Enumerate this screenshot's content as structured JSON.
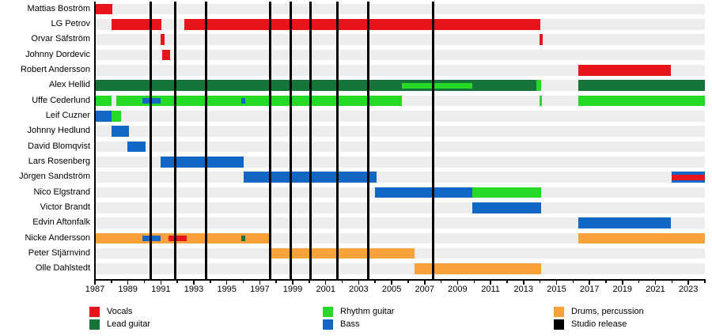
{
  "chart_data": {
    "type": "gantt",
    "x_axis": {
      "min_year": 1987,
      "max_year": 2024,
      "minor_tick_step": 1,
      "label_year_start": 1987,
      "label_year_step": 2,
      "tick_labels": [
        "1987",
        "1989",
        "1991",
        "1993",
        "1995",
        "1997",
        "1999",
        "2001",
        "2003",
        "2005",
        "2007",
        "2009",
        "2011",
        "2013",
        "2015",
        "2017",
        "2019",
        "2021",
        "2023"
      ]
    },
    "roles": {
      "vocals": {
        "label": "Vocals",
        "color": "#e8141c"
      },
      "lead_guitar": {
        "label": "Lead guitar",
        "color": "#157539"
      },
      "rhythm_guitar": {
        "label": "Rhythm guitar",
        "color": "#26d926"
      },
      "bass": {
        "label": "Bass",
        "color": "#1266c4"
      },
      "drums": {
        "label": "Drums, percussion",
        "color": "#f9a13b"
      },
      "studio_release": {
        "label": "Studio release",
        "color": "#000000"
      }
    },
    "legend_columns": [
      [
        "vocals",
        "lead_guitar"
      ],
      [
        "rhythm_guitar",
        "bass"
      ],
      [
        "drums",
        "studio_release"
      ]
    ],
    "studio_releases_years": [
      1990.4,
      1991.85,
      1993.75,
      1997.65,
      1998.9,
      2000.1,
      2001.7,
      2003.6,
      2007.5
    ],
    "members": [
      {
        "name": "Mattias Boström",
        "bars": [
          {
            "role": "vocals",
            "start": 1987.0,
            "end": 1988.05
          }
        ],
        "overlays": []
      },
      {
        "name": "LG Petrov",
        "bars": [
          {
            "role": "vocals",
            "start": 1988.0,
            "end": 1991.05
          },
          {
            "role": "vocals",
            "start": 1992.4,
            "end": 2014.0
          }
        ],
        "overlays": []
      },
      {
        "name": "Orvar Säfström",
        "bars": [
          {
            "role": "vocals",
            "start": 1991.0,
            "end": 1991.2
          },
          {
            "role": "vocals",
            "start": 2013.95,
            "end": 2014.15
          }
        ],
        "overlays": []
      },
      {
        "name": "Johnny Dordevic",
        "bars": [
          {
            "role": "vocals",
            "start": 1991.1,
            "end": 1991.55
          }
        ],
        "overlays": []
      },
      {
        "name": "Robert Andersson",
        "bars": [
          {
            "role": "vocals",
            "start": 2016.3,
            "end": 2021.95
          }
        ],
        "overlays": []
      },
      {
        "name": "Alex Hellid",
        "bars": [
          {
            "role": "lead_guitar",
            "start": 1987.0,
            "end": 2014.05
          },
          {
            "role": "rhythm_guitar",
            "start": 2013.8,
            "end": 2014.05
          },
          {
            "role": "lead_guitar",
            "start": 2016.3,
            "end": 2024.0
          }
        ],
        "overlays": [
          {
            "role": "rhythm_guitar",
            "start": 2005.6,
            "end": 2009.9
          }
        ]
      },
      {
        "name": "Uffe Cederlund",
        "bars": [
          {
            "role": "rhythm_guitar",
            "start": 1987.0,
            "end": 1988.0
          },
          {
            "role": "rhythm_guitar",
            "start": 1988.3,
            "end": 2005.6
          },
          {
            "role": "rhythm_guitar",
            "start": 2013.95,
            "end": 2014.1
          },
          {
            "role": "rhythm_guitar",
            "start": 2016.3,
            "end": 2024.0
          }
        ],
        "overlays": [
          {
            "role": "bass",
            "start": 1989.9,
            "end": 1991.0
          },
          {
            "role": "bass",
            "start": 1995.9,
            "end": 1996.1
          }
        ]
      },
      {
        "name": "Leif Cuzner",
        "bars": [
          {
            "role": "bass",
            "start": 1987.0,
            "end": 1988.0
          },
          {
            "role": "rhythm_guitar",
            "start": 1988.0,
            "end": 1988.6
          }
        ],
        "overlays": []
      },
      {
        "name": "Johnny Hedlund",
        "bars": [
          {
            "role": "bass",
            "start": 1988.0,
            "end": 1989.05
          }
        ],
        "overlays": []
      },
      {
        "name": "David Blomqvist",
        "bars": [
          {
            "role": "bass",
            "start": 1988.95,
            "end": 1990.05
          }
        ],
        "overlays": []
      },
      {
        "name": "Lars Rosenberg",
        "bars": [
          {
            "role": "bass",
            "start": 1991.0,
            "end": 1996.0
          }
        ],
        "overlays": []
      },
      {
        "name": "Jörgen Sandström",
        "bars": [
          {
            "role": "bass",
            "start": 1996.0,
            "end": 2004.1
          },
          {
            "role": "bass",
            "start": 2022.0,
            "end": 2024.0
          }
        ],
        "overlays": [
          {
            "role": "vocals",
            "start": 2022.0,
            "end": 2024.0
          }
        ]
      },
      {
        "name": "Nico Elgstrand",
        "bars": [
          {
            "role": "bass",
            "start": 2004.0,
            "end": 2009.9
          },
          {
            "role": "rhythm_guitar",
            "start": 2009.9,
            "end": 2014.05
          }
        ],
        "overlays": []
      },
      {
        "name": "Victor Brandt",
        "bars": [
          {
            "role": "bass",
            "start": 2009.9,
            "end": 2014.05
          }
        ],
        "overlays": []
      },
      {
        "name": "Edvin Aftonfalk",
        "bars": [
          {
            "role": "bass",
            "start": 2016.3,
            "end": 2021.95
          }
        ],
        "overlays": []
      },
      {
        "name": "Nicke Andersson",
        "bars": [
          {
            "role": "drums",
            "start": 1987.0,
            "end": 1997.7
          },
          {
            "role": "drums",
            "start": 2016.3,
            "end": 2024.0
          }
        ],
        "overlays": [
          {
            "role": "bass",
            "start": 1989.9,
            "end": 1991.0
          },
          {
            "role": "vocals",
            "start": 1991.45,
            "end": 1992.55
          },
          {
            "role": "lead_guitar",
            "start": 1995.9,
            "end": 1996.1
          }
        ]
      },
      {
        "name": "Peter Stjärnvind",
        "bars": [
          {
            "role": "drums",
            "start": 1997.7,
            "end": 2006.4
          }
        ],
        "overlays": []
      },
      {
        "name": "Olle Dahlstedt",
        "bars": [
          {
            "role": "drums",
            "start": 2006.4,
            "end": 2014.05
          }
        ],
        "overlays": []
      }
    ]
  }
}
